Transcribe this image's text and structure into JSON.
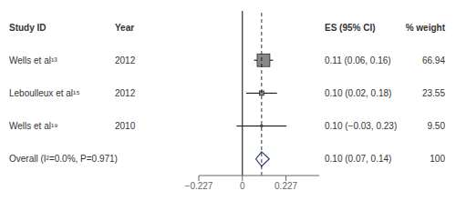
{
  "chart_data": {
    "type": "forest",
    "columns": [
      "Study ID",
      "Year",
      "ES (95% CI)",
      "% weight"
    ],
    "categories": [
      "Wells et al¹³",
      "Leboulleux et al¹⁵",
      "Wells et al¹⁹"
    ],
    "years": [
      "2012",
      "2012",
      "2010"
    ],
    "values": [
      0.11,
      0.1,
      0.1
    ],
    "ci_low": [
      0.06,
      0.02,
      -0.03
    ],
    "ci_high": [
      0.16,
      0.18,
      0.23
    ],
    "value_labels": [
      "0.11 (0.06, 0.16)",
      "0.10 (0.02, 0.18)",
      "0.10 (−0.03, 0.23)"
    ],
    "weights": [
      66.94,
      23.55,
      9.5
    ],
    "weight_labels": [
      "66.94",
      "23.55",
      "9.50"
    ],
    "overall": {
      "name": "Overall (I²=0.0%, P=0.971)",
      "value": 0.1,
      "ci_low": 0.07,
      "ci_high": 0.14,
      "value_label": "0.10 (0.07, 0.14)",
      "weight": 100,
      "color": "#2c4770"
    },
    "reference_lines": [
      {
        "x": 0,
        "line_style": "solid"
      },
      {
        "x": 0.1,
        "line_style": "dashed"
      }
    ],
    "xlim": [
      -0.227,
      0.4
    ],
    "xticks": [
      {
        "value": -0.227,
        "label": "−0.227"
      },
      0,
      0.227
    ],
    "color": "#888888"
  }
}
